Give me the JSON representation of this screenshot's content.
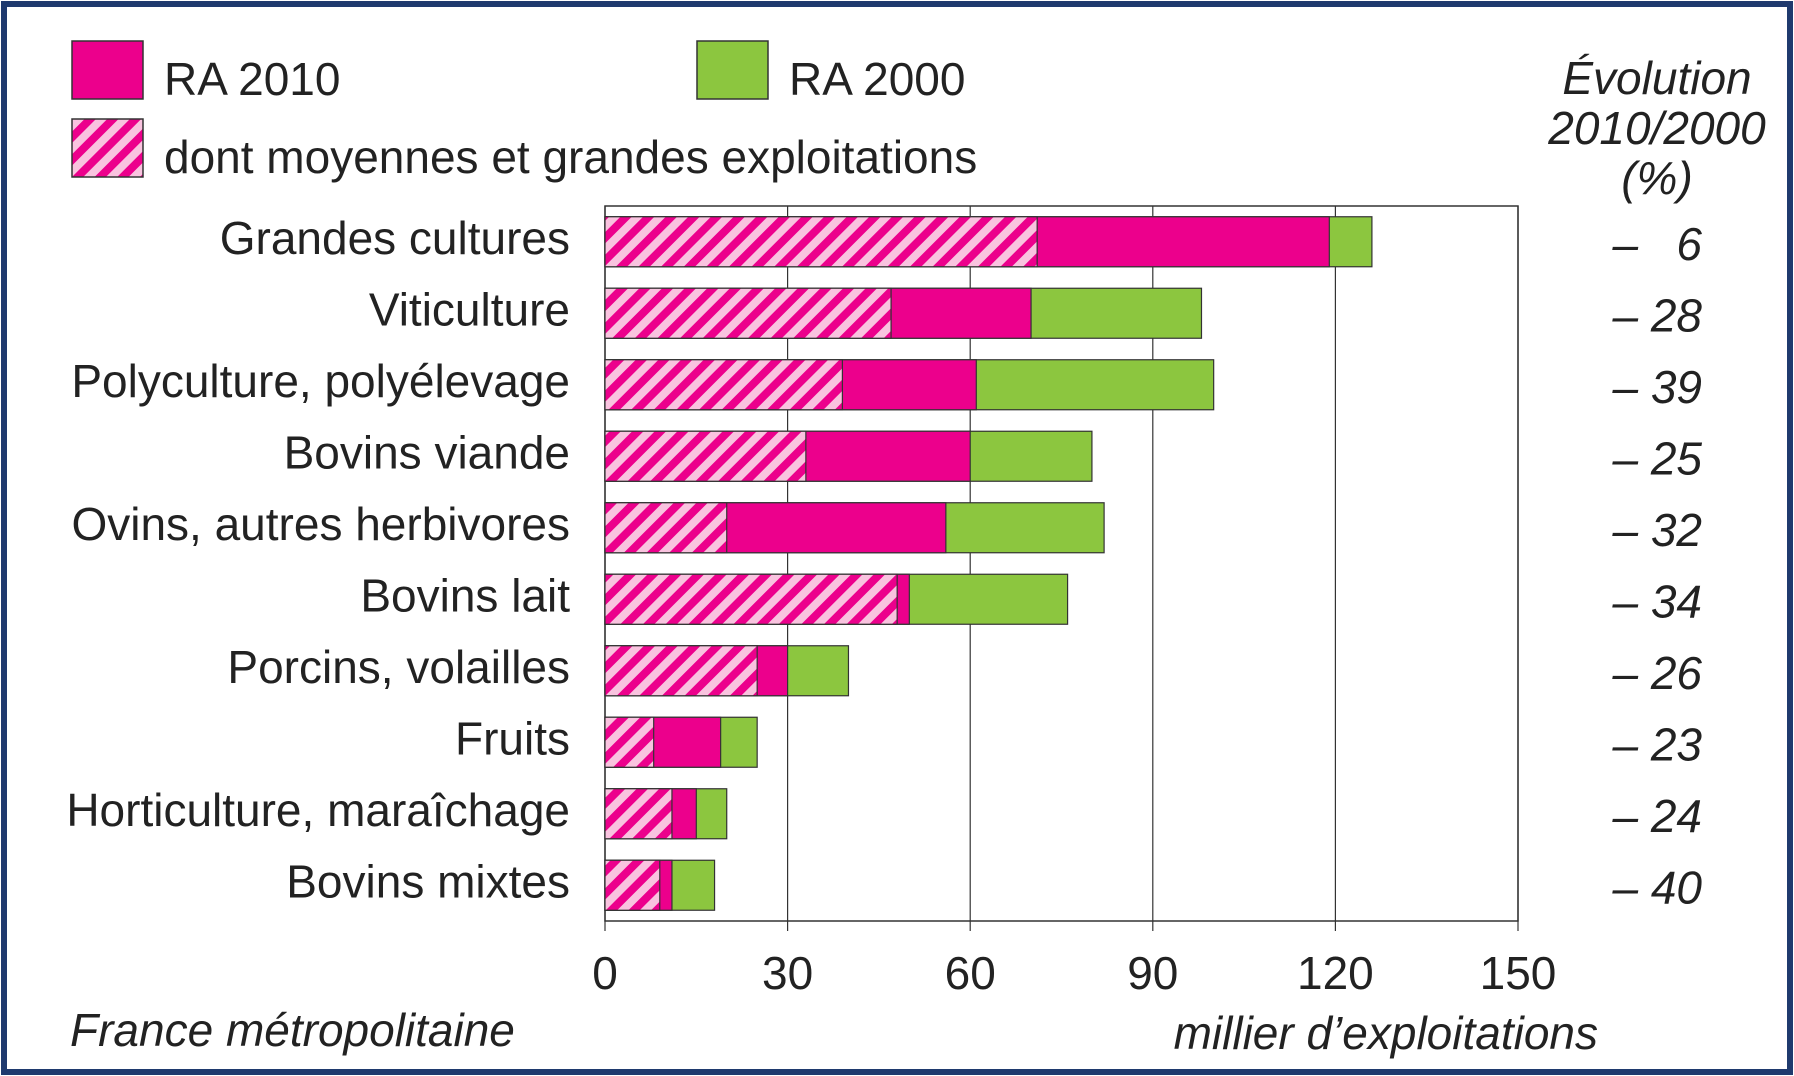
{
  "chart_data": {
    "type": "bar",
    "orientation": "horizontal",
    "overlap": true,
    "categories": [
      "Grandes cultures",
      "Viticulture",
      "Polyculture, polyélevage",
      "Bovins viande",
      "Ovins, autres herbivores",
      "Bovins lait",
      "Porcins, volailles",
      "Fruits",
      "Horticulture, maraîchage",
      "Bovins mixtes"
    ],
    "series": [
      {
        "name": "RA 2000",
        "color": "#8cc63f",
        "values": [
          126,
          98,
          100,
          80,
          82,
          76,
          40,
          25,
          20,
          18
        ]
      },
      {
        "name": "RA 2010",
        "color": "#ec008c",
        "values": [
          119,
          70,
          61,
          60,
          56,
          50,
          30,
          19,
          15,
          11
        ]
      },
      {
        "name": "dont moyennes et grandes exploitations",
        "color": "#ec008c",
        "hatch": true,
        "values": [
          71,
          47,
          39,
          33,
          20,
          48,
          25,
          8,
          11,
          9
        ]
      }
    ],
    "xlim": [
      0,
      150
    ],
    "xticks": [
      0,
      30,
      60,
      90,
      120,
      150
    ],
    "grid": true,
    "x_label": "millier d’exploitations",
    "note": "France métropolitaine",
    "evolution": {
      "title": [
        "Évolution",
        "2010/2000",
        "(%)"
      ],
      "values": [
        -6,
        -28,
        -39,
        -25,
        -32,
        -34,
        -26,
        -23,
        -24,
        -40
      ],
      "value_labels": [
        "–   6",
        "– 28",
        "– 39",
        "– 25",
        "– 32",
        "– 34",
        "– 26",
        "– 23",
        "– 24",
        "– 40"
      ]
    }
  }
}
